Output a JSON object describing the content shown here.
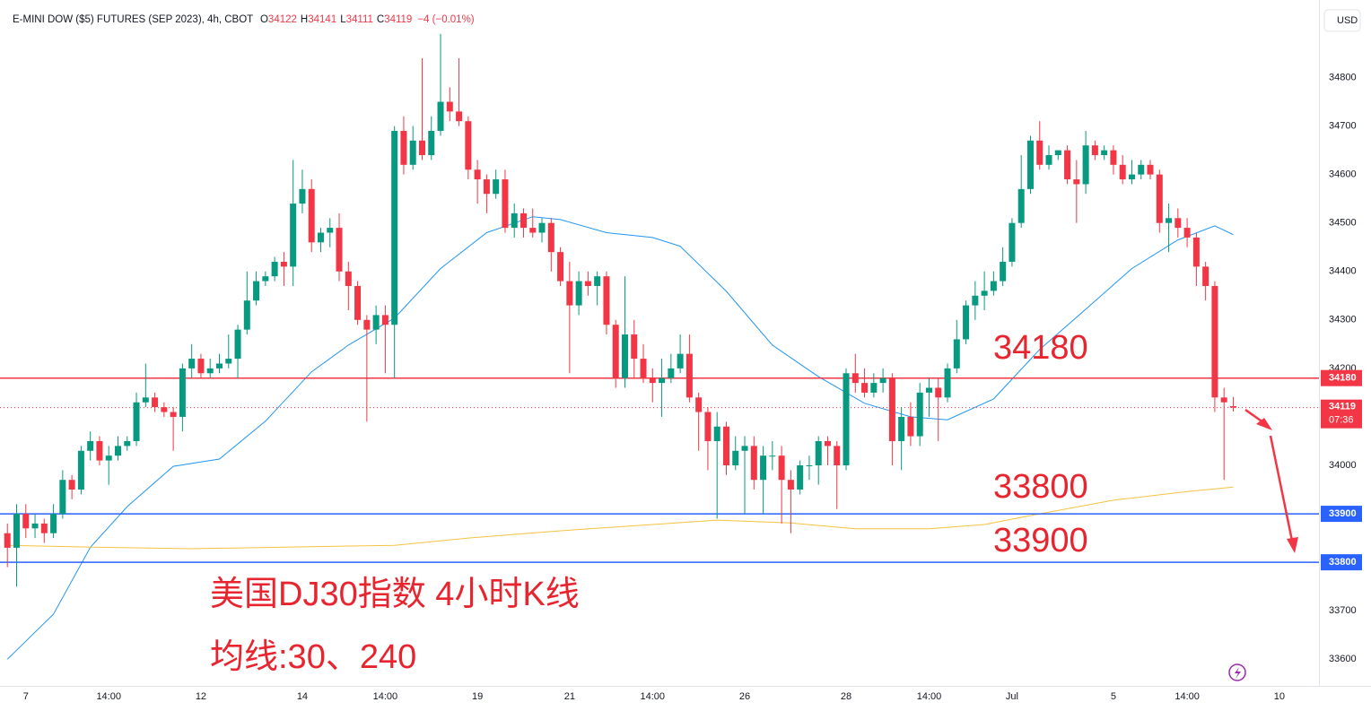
{
  "chart_data": {
    "type": "candlestick",
    "symbol": "E-MINI DOW ($5) FUTURES (SEP 2023), 4h, CBOT",
    "ohlc_labels": [
      "O",
      "H",
      "L",
      "C"
    ],
    "change": "−4 (−0.01%)",
    "currency": "USD",
    "countdown": "07:36",
    "up_color": "#089981",
    "down_color": "#f23645",
    "xlim": [
      -0.8,
      142.3
    ],
    "ylim": [
      33545,
      34960
    ],
    "yticks": [
      33600,
      33700,
      33800,
      33900,
      34000,
      34100,
      34200,
      34300,
      34400,
      34500,
      34600,
      34700,
      34800
    ],
    "xticks": [
      {
        "value": 2,
        "label": "7"
      },
      {
        "value": 11,
        "label": "14:00"
      },
      {
        "value": 21,
        "label": "12"
      },
      {
        "value": 32,
        "label": "14"
      },
      {
        "value": 41,
        "label": "14:00"
      },
      {
        "value": 51,
        "label": "19"
      },
      {
        "value": 61,
        "label": "21"
      },
      {
        "value": 70,
        "label": "14:00"
      },
      {
        "value": 80,
        "label": "26"
      },
      {
        "value": 91,
        "label": "28"
      },
      {
        "value": 100,
        "label": "14:00"
      },
      {
        "value": 109,
        "label": "Jul"
      },
      {
        "value": 120,
        "label": "5"
      },
      {
        "value": 128,
        "label": "14:00"
      },
      {
        "value": 138,
        "label": "10"
      }
    ],
    "grid": true,
    "ohlc": [
      [
        33860,
        33880,
        33790,
        33830
      ],
      [
        33830,
        33920,
        33750,
        33900
      ],
      [
        33900,
        33920,
        33850,
        33870
      ],
      [
        33870,
        33900,
        33850,
        33880
      ],
      [
        33880,
        33890,
        33840,
        33860
      ],
      [
        33860,
        33920,
        33850,
        33900
      ],
      [
        33900,
        33990,
        33890,
        33970
      ],
      [
        33970,
        33980,
        33930,
        33950
      ],
      [
        33950,
        34040,
        33940,
        34030
      ],
      [
        34030,
        34070,
        34010,
        34050
      ],
      [
        34050,
        34060,
        34000,
        34010
      ],
      [
        34010,
        34040,
        33960,
        34020
      ],
      [
        34020,
        34060,
        34010,
        34040
      ],
      [
        34040,
        34060,
        34030,
        34050
      ],
      [
        34050,
        34150,
        34040,
        34130
      ],
      [
        34130,
        34210,
        34120,
        34140
      ],
      [
        34140,
        34150,
        34110,
        34120
      ],
      [
        34120,
        34130,
        34100,
        34110
      ],
      [
        34110,
        34120,
        34030,
        34100
      ],
      [
        34100,
        34210,
        34070,
        34200
      ],
      [
        34200,
        34250,
        34180,
        34220
      ],
      [
        34220,
        34230,
        34180,
        34190
      ],
      [
        34190,
        34220,
        34180,
        34200
      ],
      [
        34200,
        34230,
        34190,
        34210
      ],
      [
        34210,
        34270,
        34200,
        34220
      ],
      [
        34220,
        34290,
        34180,
        34280
      ],
      [
        34280,
        34400,
        34270,
        34340
      ],
      [
        34340,
        34400,
        34330,
        34380
      ],
      [
        34380,
        34400,
        34370,
        34390
      ],
      [
        34390,
        34430,
        34380,
        34420
      ],
      [
        34420,
        34440,
        34370,
        34410
      ],
      [
        34410,
        34630,
        34370,
        34540
      ],
      [
        34540,
        34610,
        34520,
        34570
      ],
      [
        34570,
        34590,
        34440,
        34460
      ],
      [
        34460,
        34490,
        34440,
        34480
      ],
      [
        34480,
        34510,
        34450,
        34490
      ],
      [
        34490,
        34520,
        34380,
        34400
      ],
      [
        34400,
        34420,
        34320,
        34370
      ],
      [
        34370,
        34380,
        34290,
        34300
      ],
      [
        34300,
        34310,
        34090,
        34280
      ],
      [
        34280,
        34330,
        34250,
        34310
      ],
      [
        34310,
        34330,
        34190,
        34290
      ],
      [
        34290,
        34700,
        34180,
        34690
      ],
      [
        34690,
        34720,
        34600,
        34620
      ],
      [
        34620,
        34700,
        34610,
        34670
      ],
      [
        34670,
        34840,
        34630,
        34640
      ],
      [
        34640,
        34720,
        34630,
        34690
      ],
      [
        34690,
        34890,
        34680,
        34750
      ],
      [
        34750,
        34780,
        34710,
        34730
      ],
      [
        34730,
        34840,
        34700,
        34710
      ],
      [
        34710,
        34720,
        34590,
        34610
      ],
      [
        34610,
        34630,
        34540,
        34590
      ],
      [
        34590,
        34600,
        34520,
        34560
      ],
      [
        34560,
        34610,
        34550,
        34590
      ],
      [
        34590,
        34610,
        34480,
        34490
      ],
      [
        34490,
        34540,
        34470,
        34520
      ],
      [
        34520,
        34530,
        34470,
        34490
      ],
      [
        34490,
        34530,
        34470,
        34480
      ],
      [
        34480,
        34510,
        34460,
        34500
      ],
      [
        34500,
        34510,
        34400,
        34440
      ],
      [
        34440,
        34450,
        34370,
        34380
      ],
      [
        34380,
        34420,
        34190,
        34330
      ],
      [
        34330,
        34400,
        34310,
        34380
      ],
      [
        34380,
        34400,
        34350,
        34370
      ],
      [
        34370,
        34400,
        34330,
        34390
      ],
      [
        34390,
        34400,
        34270,
        34290
      ],
      [
        34290,
        34300,
        34160,
        34180
      ],
      [
        34180,
        34390,
        34160,
        34270
      ],
      [
        34270,
        34300,
        34180,
        34220
      ],
      [
        34220,
        34250,
        34170,
        34180
      ],
      [
        34180,
        34200,
        34130,
        34170
      ],
      [
        34170,
        34220,
        34100,
        34180
      ],
      [
        34180,
        34230,
        34170,
        34200
      ],
      [
        34200,
        34270,
        34190,
        34230
      ],
      [
        34230,
        34270,
        34130,
        34140
      ],
      [
        34140,
        34150,
        34030,
        34110
      ],
      [
        34110,
        34120,
        33990,
        34050
      ],
      [
        34050,
        34110,
        33890,
        34080
      ],
      [
        34080,
        34090,
        33980,
        34000
      ],
      [
        34000,
        34060,
        33990,
        34030
      ],
      [
        34030,
        34060,
        33900,
        34040
      ],
      [
        34040,
        34060,
        33950,
        33970
      ],
      [
        33970,
        34040,
        33900,
        34020
      ],
      [
        34020,
        34050,
        33990,
        34020
      ],
      [
        34020,
        34040,
        33880,
        33970
      ],
      [
        33970,
        33990,
        33860,
        33950
      ],
      [
        33950,
        34010,
        33940,
        34000
      ],
      [
        34000,
        34020,
        33970,
        34000
      ],
      [
        34000,
        34060,
        33960,
        34050
      ],
      [
        34050,
        34060,
        34000,
        34040
      ],
      [
        34040,
        34050,
        33910,
        34000
      ],
      [
        34000,
        34200,
        33990,
        34190
      ],
      [
        34190,
        34230,
        34150,
        34170
      ],
      [
        34170,
        34200,
        34140,
        34150
      ],
      [
        34150,
        34190,
        34140,
        34170
      ],
      [
        34170,
        34200,
        34150,
        34180
      ],
      [
        34180,
        34190,
        34000,
        34050
      ],
      [
        34050,
        34120,
        33990,
        34100
      ],
      [
        34100,
        34130,
        34040,
        34060
      ],
      [
        34060,
        34170,
        34040,
        34150
      ],
      [
        34150,
        34180,
        34100,
        34160
      ],
      [
        34160,
        34180,
        34050,
        34140
      ],
      [
        34140,
        34210,
        34130,
        34200
      ],
      [
        34200,
        34300,
        34190,
        34260
      ],
      [
        34260,
        34340,
        34250,
        34330
      ],
      [
        34330,
        34380,
        34300,
        34350
      ],
      [
        34350,
        34400,
        34320,
        34360
      ],
      [
        34360,
        34400,
        34350,
        34380
      ],
      [
        34380,
        34450,
        34370,
        34420
      ],
      [
        34420,
        34510,
        34410,
        34500
      ],
      [
        34500,
        34640,
        34490,
        34570
      ],
      [
        34570,
        34680,
        34560,
        34670
      ],
      [
        34670,
        34710,
        34610,
        34620
      ],
      [
        34620,
        34660,
        34610,
        34640
      ],
      [
        34640,
        34650,
        34630,
        34650
      ],
      [
        34650,
        34660,
        34580,
        34590
      ],
      [
        34590,
        34630,
        34500,
        34580
      ],
      [
        34580,
        34690,
        34560,
        34660
      ],
      [
        34660,
        34670,
        34630,
        34640
      ],
      [
        34640,
        34660,
        34630,
        34650
      ],
      [
        34650,
        34660,
        34600,
        34620
      ],
      [
        34620,
        34640,
        34580,
        34590
      ],
      [
        34590,
        34630,
        34580,
        34600
      ],
      [
        34600,
        34630,
        34590,
        34620
      ],
      [
        34620,
        34630,
        34590,
        34600
      ],
      [
        34600,
        34610,
        34480,
        34500
      ],
      [
        34500,
        34540,
        34440,
        34510
      ],
      [
        34510,
        34530,
        34470,
        34490
      ],
      [
        34490,
        34510,
        34450,
        34470
      ],
      [
        34470,
        34480,
        34370,
        34410
      ],
      [
        34410,
        34420,
        34340,
        34370
      ],
      [
        34370,
        34380,
        34110,
        34140
      ],
      [
        34140,
        34160,
        33970,
        34130
      ],
      [
        34122,
        34141,
        34111,
        34119
      ]
    ],
    "moving_averages": [
      {
        "color": "#2196f3",
        "x": [
          0,
          5,
          9,
          13,
          18,
          23,
          28,
          33,
          37,
          42,
          47,
          52,
          57,
          60,
          65,
          70,
          73,
          78,
          83,
          88,
          93,
          98,
          102,
          107,
          112,
          117,
          122,
          127,
          131,
          133
        ],
        "values": [
          33600,
          33693,
          33831,
          33915,
          33998,
          34013,
          34091,
          34193,
          34248,
          34304,
          34406,
          34480,
          34513,
          34507,
          34480,
          34470,
          34452,
          34359,
          34248,
          34183,
          34128,
          34100,
          34094,
          34137,
          34239,
          34322,
          34406,
          34465,
          34494,
          34476
        ]
      },
      {
        "color": "#f5c342",
        "x": [
          0,
          10,
          20,
          42,
          50,
          60,
          70,
          77,
          85,
          92,
          100,
          106,
          112,
          120,
          128,
          133
        ],
        "values": [
          33835,
          33831,
          33828,
          33835,
          33850,
          33865,
          33878,
          33887,
          33881,
          33869,
          33869,
          33878,
          33900,
          33928,
          33946,
          33955
        ]
      }
    ],
    "levels": [
      {
        "value": 34180,
        "color": "#f23645"
      },
      {
        "value": 33900,
        "color": "#2962ff"
      },
      {
        "value": 33800,
        "color": "#2962ff"
      }
    ],
    "annotations": [
      "34180",
      "33800",
      "33900",
      "美国DJ30指数 4小时K线",
      "均线:30、240"
    ]
  }
}
